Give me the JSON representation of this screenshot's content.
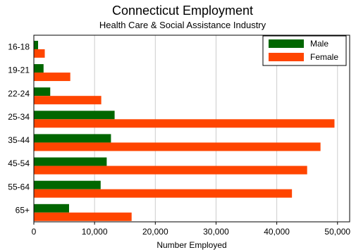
{
  "chart_data": {
    "type": "bar",
    "orientation": "horizontal",
    "title": "Connecticut Employment",
    "subtitle": "Health Care & Social Assistance Industry",
    "xlabel": "Number Employed",
    "ylabel": "",
    "categories": [
      "16-18",
      "19-21",
      "22-24",
      "25-34",
      "35-44",
      "45-54",
      "55-64",
      "65+"
    ],
    "series": [
      {
        "name": "Male",
        "color": "#006600",
        "values": [
          700,
          1600,
          2700,
          13300,
          12700,
          12000,
          11000,
          5800
        ]
      },
      {
        "name": "Female",
        "color": "#ff4500",
        "values": [
          1800,
          6000,
          11100,
          49500,
          47200,
          45000,
          42500,
          16100
        ]
      }
    ],
    "xlim": [
      0,
      52000
    ],
    "xticks": [
      0,
      10000,
      20000,
      30000,
      40000,
      50000
    ],
    "xtick_labels": [
      "0",
      "10,000",
      "20,000",
      "30,000",
      "40,000",
      "50,000"
    ],
    "grid": "vertical",
    "legend": "top-right"
  }
}
